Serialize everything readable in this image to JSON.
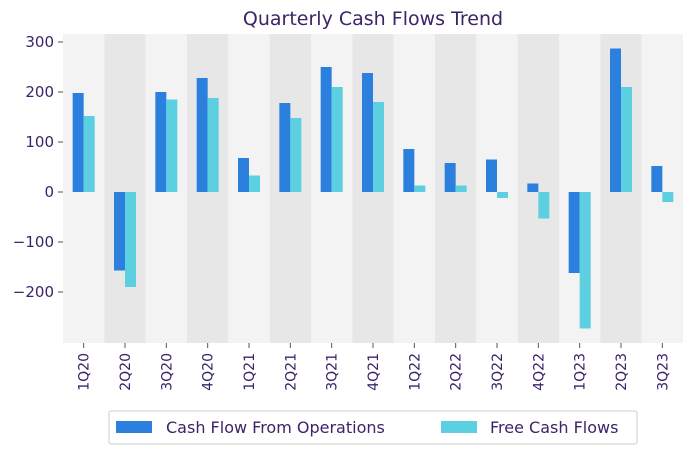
{
  "chart_data": {
    "type": "bar",
    "title": "Quarterly Cash Flows Trend",
    "xlabel": "",
    "ylabel": "",
    "categories": [
      "1Q20",
      "2Q20",
      "3Q20",
      "4Q20",
      "1Q21",
      "2Q21",
      "3Q21",
      "4Q21",
      "1Q22",
      "2Q22",
      "3Q22",
      "4Q22",
      "1Q23",
      "2Q23",
      "3Q23"
    ],
    "series": [
      {
        "name": "Cash Flow From Operations",
        "values": [
          198,
          -157,
          200,
          228,
          68,
          178,
          250,
          238,
          86,
          58,
          65,
          17,
          -162,
          287,
          52
        ],
        "color": "#2b7fdd"
      },
      {
        "name": "Free Cash Flows",
        "values": [
          152,
          -190,
          185,
          188,
          33,
          148,
          210,
          180,
          13,
          13,
          -12,
          -53,
          -273,
          210,
          -20
        ],
        "color": "#5ccfe0"
      }
    ],
    "ylim": [
      -300,
      320
    ],
    "yticks": [
      300,
      200,
      100,
      0,
      -100,
      -200
    ],
    "ytick_labels": [
      "300",
      "200",
      "100",
      "0",
      "−100",
      "−200"
    ],
    "band_colors": [
      "#f3f3f3",
      "#e7e7e7"
    ],
    "grid": false,
    "legend_position": "bottom"
  }
}
